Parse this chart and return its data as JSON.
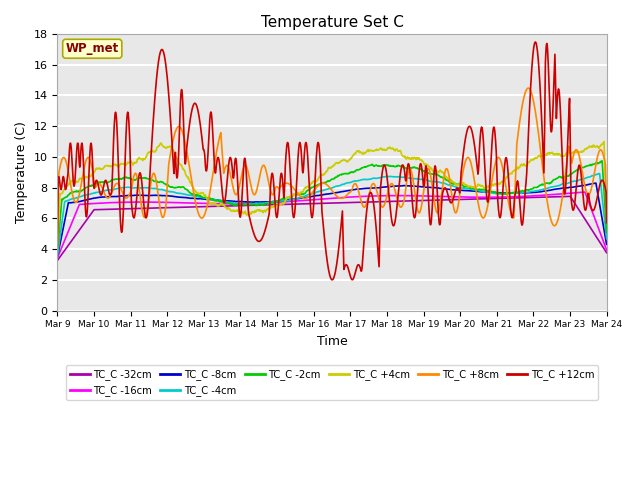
{
  "title": "Temperature Set C",
  "xlabel": "Time",
  "ylabel": "Temperature (C)",
  "ylim": [
    0,
    18
  ],
  "yticks": [
    0,
    2,
    4,
    6,
    8,
    10,
    12,
    14,
    16,
    18
  ],
  "x_tick_labels": [
    "Mar 9",
    "Mar 10",
    "Mar 11",
    "Mar 12",
    "Mar 13",
    "Mar 14",
    "Mar 15",
    "Mar 16",
    "Mar 17",
    "Mar 18",
    "Mar 19",
    "Mar 20",
    "Mar 21",
    "Mar 22",
    "Mar 23",
    "Mar 24"
  ],
  "wp_met_label": "WP_met",
  "wp_met_box_color": "#FFFFCC",
  "wp_met_text_color": "#880000",
  "legend_entries": [
    {
      "label": "TC_C -32cm",
      "color": "#AA00AA"
    },
    {
      "label": "TC_C -16cm",
      "color": "#FF00FF"
    },
    {
      "label": "TC_C -8cm",
      "color": "#0000CC"
    },
    {
      "label": "TC_C -4cm",
      "color": "#00CCCC"
    },
    {
      "label": "TC_C -2cm",
      "color": "#00CC00"
    },
    {
      "label": "TC_C +4cm",
      "color": "#CCCC00"
    },
    {
      "label": "TC_C +8cm",
      "color": "#FF8800"
    },
    {
      "label": "TC_C +12cm",
      "color": "#CC0000"
    }
  ],
  "bg_color": "#E8E8E8",
  "grid_color": "#FFFFFF",
  "linewidth": 1.2
}
